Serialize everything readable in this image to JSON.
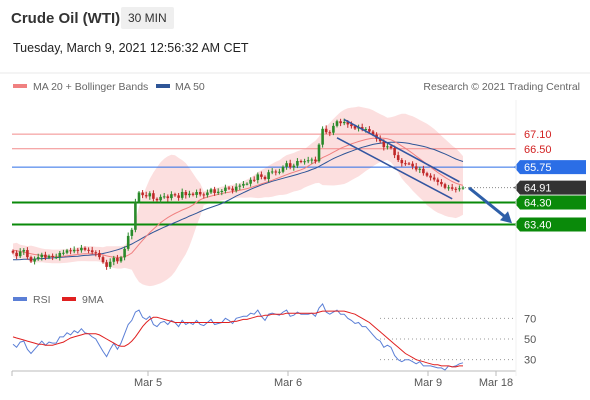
{
  "header": {
    "instrument": "Crude Oil (WTI)",
    "timeframe": "30 MIN",
    "datetime": "Tuesday, March 9, 2021 12:56:32 AM CET"
  },
  "legend": {
    "price_items": [
      {
        "label": "MA 20 + Bollinger Bands",
        "color": "#f08080"
      },
      {
        "label": "MA 50",
        "color": "#2e5597"
      }
    ],
    "rsi_items": [
      {
        "label": "RSI",
        "color": "#5b7fd6"
      },
      {
        "label": "9MA",
        "color": "#e02020"
      }
    ],
    "copyright": "Research © 2021 Trading Central"
  },
  "colors": {
    "pivot": "#2b6ee6",
    "support": "#0a8a0a",
    "resistance": "#f28b8b",
    "last": "#333333",
    "candle_up": "#2a8a2a",
    "candle_down": "#c02828",
    "bollinger": "#fbd4d4",
    "arrow": "#2e5fa8"
  },
  "chart_data": [
    {
      "type": "candlestick",
      "ylim": [
        61.0,
        68.5
      ],
      "x_ticks": [
        "Mar 5",
        "Mar 6",
        "Mar 9",
        "Mar 18"
      ],
      "levels": [
        {
          "value": 67.1,
          "label": "67.10",
          "kind": "resistance"
        },
        {
          "value": 66.5,
          "label": "66.50",
          "kind": "resistance"
        },
        {
          "value": 65.75,
          "label": "65.75",
          "kind": "pivot"
        },
        {
          "value": 64.91,
          "label": "64.91",
          "kind": "last"
        },
        {
          "value": 64.3,
          "label": "64.30",
          "kind": "support"
        },
        {
          "value": 63.4,
          "label": "63.40",
          "kind": "support"
        }
      ],
      "close": [
        62.24,
        62.1,
        62.29,
        62.35,
        62.06,
        61.88,
        61.99,
        62.06,
        62.16,
        62.04,
        62.11,
        62.06,
        62.06,
        62.23,
        62.24,
        62.34,
        62.3,
        62.36,
        62.34,
        62.44,
        62.36,
        62.34,
        62.26,
        62.23,
        62.06,
        61.85,
        61.66,
        61.87,
        62.03,
        61.89,
        62.05,
        62.4,
        62.93,
        63.18,
        64.33,
        64.71,
        64.6,
        64.55,
        64.68,
        64.45,
        64.39,
        64.53,
        64.55,
        64.48,
        64.64,
        64.59,
        64.49,
        64.73,
        64.6,
        64.66,
        64.61,
        64.73,
        64.63,
        64.6,
        64.71,
        64.84,
        64.69,
        64.74,
        64.77,
        64.91,
        64.87,
        64.79,
        64.95,
        64.99,
        65.06,
        65.07,
        65.23,
        65.22,
        65.45,
        65.35,
        65.26,
        65.54,
        65.57,
        65.55,
        65.56,
        65.76,
        65.91,
        65.74,
        65.81,
        66.0,
        65.97,
        65.99,
        66.03,
        66.06,
        65.99,
        66.67,
        67.32,
        67.18,
        67.16,
        67.44,
        67.63,
        67.55,
        67.6,
        67.5,
        67.43,
        67.33,
        67.39,
        67.3,
        67.31,
        67.21,
        67.08,
        66.91,
        66.81,
        66.57,
        66.6,
        66.53,
        66.24,
        66.04,
        65.91,
        65.9,
        65.89,
        65.78,
        65.65,
        65.68,
        65.5,
        65.4,
        65.32,
        65.24,
        65.14,
        65.05,
        64.9,
        64.92,
        64.86,
        64.85,
        64.88,
        64.91
      ],
      "ma20": [
        62.34,
        62.32,
        62.29,
        62.26,
        62.23,
        62.2,
        62.17,
        62.15,
        62.13,
        62.11,
        62.1,
        62.09,
        62.09,
        62.09,
        62.1,
        62.11,
        62.13,
        62.15,
        62.17,
        62.19,
        62.2,
        62.2,
        62.2,
        62.19,
        62.18,
        62.15,
        62.11,
        62.08,
        62.06,
        62.05,
        62.05,
        62.08,
        62.14,
        62.23,
        62.4,
        62.58,
        62.75,
        62.91,
        63.07,
        63.21,
        63.34,
        63.47,
        63.58,
        63.68,
        63.77,
        63.85,
        63.92,
        63.99,
        64.05,
        64.11,
        64.2,
        64.31,
        64.41,
        64.48,
        64.52,
        64.56,
        64.6,
        64.63,
        64.67,
        64.7,
        64.72,
        64.75,
        64.77,
        64.8,
        64.83,
        64.87,
        64.91,
        64.96,
        65.01,
        65.06,
        65.11,
        65.16,
        65.21,
        65.27,
        65.32,
        65.38,
        65.44,
        65.49,
        65.54,
        65.59,
        65.64,
        65.7,
        65.79,
        65.88,
        65.96,
        66.05,
        66.14,
        66.21,
        66.28,
        66.36,
        66.44,
        66.52,
        66.58,
        66.64,
        66.7,
        66.75,
        66.8,
        66.84,
        66.88,
        66.91,
        66.93,
        66.94,
        66.94,
        66.93,
        66.91,
        66.87,
        66.8,
        66.71,
        66.61,
        66.52,
        66.42,
        66.31,
        66.2,
        66.09,
        65.98,
        65.86,
        65.75,
        65.64,
        65.53,
        65.43,
        65.33,
        65.24,
        65.16,
        65.09,
        65.04,
        65.0
      ],
      "ma50": [
        61.95,
        61.95,
        61.96,
        61.97,
        61.97,
        61.97,
        61.98,
        61.99,
        62.0,
        62.01,
        62.02,
        62.03,
        62.04,
        62.05,
        62.06,
        62.07,
        62.08,
        62.09,
        62.1,
        62.12,
        62.13,
        62.14,
        62.15,
        62.16,
        62.18,
        62.21,
        62.24,
        62.28,
        62.32,
        62.36,
        62.41,
        62.47,
        62.53,
        62.6,
        62.68,
        62.76,
        62.85,
        62.93,
        63.01,
        63.08,
        63.15,
        63.22,
        63.29,
        63.35,
        63.42,
        63.48,
        63.54,
        63.61,
        63.67,
        63.74,
        63.8,
        63.86,
        63.93,
        63.99,
        64.05,
        64.1,
        64.15,
        64.2,
        64.26,
        64.33,
        64.4,
        64.48,
        64.56,
        64.63,
        64.7,
        64.77,
        64.84,
        64.9,
        64.96,
        65.02,
        65.07,
        65.12,
        65.17,
        65.21,
        65.25,
        65.29,
        65.33,
        65.37,
        65.41,
        65.45,
        65.5,
        65.54,
        65.59,
        65.65,
        65.7,
        65.78,
        65.86,
        65.94,
        66.02,
        66.1,
        66.17,
        66.23,
        66.29,
        66.35,
        66.4,
        66.46,
        66.51,
        66.56,
        66.6,
        66.64,
        66.68,
        66.71,
        66.73,
        66.75,
        66.76,
        66.77,
        66.77,
        66.77,
        66.76,
        66.74,
        66.72,
        66.69,
        66.66,
        66.63,
        66.6,
        66.56,
        66.51,
        66.47,
        66.41,
        66.35,
        66.29,
        66.22,
        66.15,
        66.08,
        66.03,
        65.98
      ]
    },
    {
      "type": "line",
      "ylim": [
        20,
        80
      ],
      "y_ticks": [
        70,
        50,
        30
      ],
      "rsi": [
        45,
        42,
        47,
        48,
        40,
        36,
        40,
        44,
        48,
        44,
        47,
        46,
        46,
        52,
        52,
        56,
        54,
        58,
        56,
        60,
        56,
        55,
        52,
        50,
        44,
        38,
        33,
        40,
        46,
        40,
        46,
        55,
        64,
        68,
        76,
        78,
        71,
        69,
        72,
        64,
        62,
        66,
        67,
        64,
        68,
        66,
        62,
        68,
        64,
        66,
        64,
        68,
        64,
        63,
        66,
        69,
        64,
        65,
        66,
        70,
        68,
        65,
        70,
        71,
        72,
        72,
        75,
        74,
        78,
        72,
        68,
        74,
        75,
        74,
        73,
        76,
        78,
        72,
        73,
        76,
        74,
        74,
        74,
        75,
        72,
        80,
        84,
        76,
        74,
        76,
        78,
        74,
        74,
        70,
        68,
        65,
        66,
        62,
        62,
        58,
        54,
        50,
        48,
        42,
        44,
        42,
        34,
        30,
        28,
        30,
        30,
        28,
        26,
        28,
        24,
        24,
        24,
        23,
        22,
        22,
        20,
        24,
        23,
        24,
        26,
        27
      ],
      "ma9": [
        52,
        51,
        50,
        49,
        48,
        47,
        46,
        45,
        45,
        44,
        44,
        44,
        45,
        46,
        47,
        49,
        51,
        52,
        53,
        54,
        55,
        55,
        55,
        55,
        54,
        52,
        50,
        48,
        46,
        44,
        43,
        43,
        45,
        48,
        52,
        57,
        62,
        66,
        69,
        71,
        71,
        70,
        69,
        68,
        67,
        66,
        66,
        66,
        66,
        66,
        66,
        66,
        66,
        66,
        66,
        66,
        66,
        66,
        66,
        66,
        66,
        67,
        67,
        68,
        69,
        69,
        70,
        71,
        72,
        72,
        73,
        73,
        74,
        74,
        74,
        74,
        75,
        75,
        75,
        75,
        75,
        75,
        75,
        75,
        75,
        76,
        77,
        77,
        77,
        77,
        77,
        77,
        77,
        76,
        75,
        74,
        72,
        70,
        68,
        66,
        63,
        60,
        57,
        54,
        51,
        48,
        45,
        42,
        39,
        36,
        34,
        32,
        30,
        29,
        28,
        27,
        26,
        25,
        25,
        24,
        24,
        24,
        23,
        23,
        24,
        24
      ]
    }
  ]
}
